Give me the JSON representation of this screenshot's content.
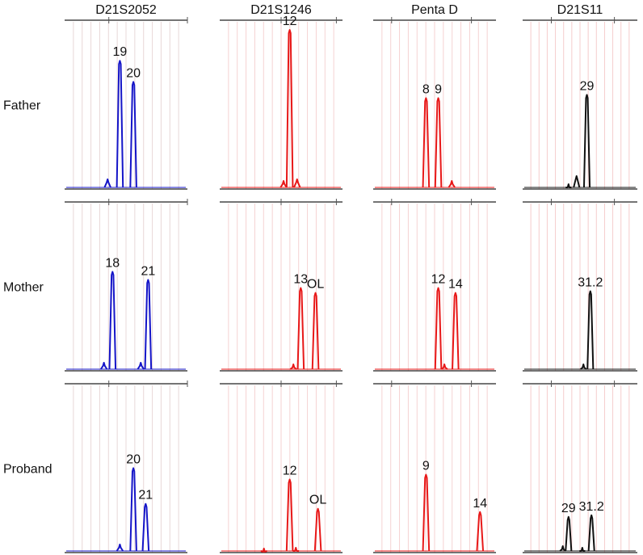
{
  "chart_data": {
    "type": "line",
    "title": "",
    "figure_type": "STR electropherogram panel",
    "loci": [
      {
        "name": "D21S2052",
        "color": "#1515c8",
        "grid_color": "#e8d8d8"
      },
      {
        "name": "D21S1246",
        "color": "#e81818",
        "grid_color": "#f5d2d2"
      },
      {
        "name": "Penta D",
        "color": "#e81818",
        "grid_color": "#f5d2d2"
      },
      {
        "name": "D21S11",
        "color": "#111111",
        "grid_color": "#f5cccc"
      }
    ],
    "samples": [
      "Father",
      "Mother",
      "Proband"
    ],
    "x_axis": {
      "range": [
        0,
        1
      ],
      "unit": "relative allele position"
    },
    "y_axis": {
      "range": [
        0,
        1
      ],
      "unit": "relative fluorescence"
    },
    "panels": [
      {
        "sample": "Father",
        "locus": "D21S2052",
        "peaks": [
          {
            "label": "19",
            "x": 0.45,
            "h": 0.78
          },
          {
            "label": "20",
            "x": 0.56,
            "h": 0.65
          }
        ],
        "minor": [
          {
            "x": 0.35,
            "h": 0.05
          }
        ]
      },
      {
        "sample": "Father",
        "locus": "D21S1246",
        "peaks": [
          {
            "label": "12",
            "x": 0.57,
            "h": 0.97
          }
        ],
        "minor": [
          {
            "x": 0.52,
            "h": 0.04
          },
          {
            "x": 0.63,
            "h": 0.05
          }
        ]
      },
      {
        "sample": "Father",
        "locus": "Penta D",
        "peaks": [
          {
            "label": "8",
            "x": 0.43,
            "h": 0.55
          },
          {
            "label": "9",
            "x": 0.53,
            "h": 0.55
          }
        ],
        "minor": [
          {
            "x": 0.64,
            "h": 0.04
          }
        ]
      },
      {
        "sample": "Father",
        "locus": "D21S11",
        "peaks": [
          {
            "label": "29",
            "x": 0.56,
            "h": 0.57
          }
        ],
        "minor": [
          {
            "x": 0.47,
            "h": 0.07
          },
          {
            "x": 0.4,
            "h": 0.02
          }
        ]
      },
      {
        "sample": "Mother",
        "locus": "D21S2052",
        "peaks": [
          {
            "label": "18",
            "x": 0.39,
            "h": 0.6
          },
          {
            "label": "21",
            "x": 0.68,
            "h": 0.55
          }
        ],
        "minor": [
          {
            "x": 0.32,
            "h": 0.04
          },
          {
            "x": 0.62,
            "h": 0.04
          }
        ]
      },
      {
        "sample": "Mother",
        "locus": "D21S1246",
        "peaks": [
          {
            "label": "13",
            "x": 0.66,
            "h": 0.5
          },
          {
            "label": "OL",
            "x": 0.78,
            "h": 0.47
          }
        ],
        "minor": [
          {
            "x": 0.6,
            "h": 0.03
          }
        ]
      },
      {
        "sample": "Mother",
        "locus": "Penta D",
        "peaks": [
          {
            "label": "12",
            "x": 0.53,
            "h": 0.5
          },
          {
            "label": "14",
            "x": 0.67,
            "h": 0.47
          }
        ],
        "minor": [
          {
            "x": 0.58,
            "h": 0.03
          }
        ]
      },
      {
        "sample": "Mother",
        "locus": "D21S11",
        "peaks": [
          {
            "label": "31.2",
            "x": 0.59,
            "h": 0.48
          }
        ],
        "minor": [
          {
            "x": 0.53,
            "h": 0.03
          }
        ]
      },
      {
        "sample": "Proband",
        "locus": "D21S2052",
        "peaks": [
          {
            "label": "20",
            "x": 0.56,
            "h": 0.51
          },
          {
            "label": "21",
            "x": 0.66,
            "h": 0.29
          }
        ],
        "minor": [
          {
            "x": 0.45,
            "h": 0.04
          }
        ]
      },
      {
        "sample": "Proband",
        "locus": "D21S1246",
        "peaks": [
          {
            "label": "12",
            "x": 0.57,
            "h": 0.44
          },
          {
            "label": "OL",
            "x": 0.8,
            "h": 0.26
          }
        ],
        "minor": [
          {
            "x": 0.36,
            "h": 0.015
          },
          {
            "x": 0.62,
            "h": 0.02
          }
        ]
      },
      {
        "sample": "Proband",
        "locus": "Penta D",
        "peaks": [
          {
            "label": "9",
            "x": 0.43,
            "h": 0.47
          },
          {
            "label": "14",
            "x": 0.87,
            "h": 0.24
          }
        ],
        "minor": []
      },
      {
        "sample": "Proband",
        "locus": "D21S11",
        "peaks": [
          {
            "label": "29",
            "x": 0.4,
            "h": 0.21
          },
          {
            "label": "31.2",
            "x": 0.6,
            "h": 0.22
          }
        ],
        "minor": [
          {
            "x": 0.35,
            "h": 0.03
          },
          {
            "x": 0.52,
            "h": 0.02
          }
        ]
      }
    ]
  }
}
